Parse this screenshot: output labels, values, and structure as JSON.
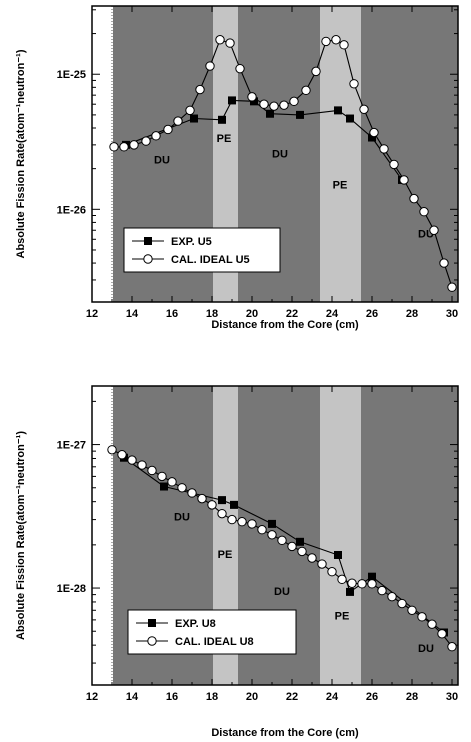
{
  "chart_data": [
    {
      "type": "line",
      "xlabel": "Distance from the Core (cm)",
      "ylabel": "Absolute Fission Rate(atom⁻¹neutron⁻¹)",
      "xlim": [
        12,
        30.3
      ],
      "xticks": [
        12,
        14,
        16,
        18,
        20,
        22,
        24,
        26,
        28,
        30
      ],
      "ylim": [
        2.06e-27,
        3.2e-25
      ],
      "log_y": true,
      "yticks": [
        {
          "value": 1e-26,
          "label": "1E-26"
        },
        {
          "value": 1e-25,
          "label": "1E-25"
        }
      ],
      "regions": [
        {
          "label": "DU",
          "x0": 13.05,
          "x1": 18.05,
          "fill": "#777777",
          "label_x": 15.5,
          "label_y": 2.3e-26
        },
        {
          "label": "PE",
          "x0": 18.05,
          "x1": 19.3,
          "fill": "#c4c4c4",
          "label_x": 18.6,
          "label_y": 3.3e-26
        },
        {
          "label": "DU",
          "x0": 19.3,
          "x1": 23.4,
          "fill": "#777777",
          "label_x": 21.4,
          "label_y": 2.55e-26
        },
        {
          "label": "PE",
          "x0": 23.4,
          "x1": 25.45,
          "fill": "#c4c4c4",
          "label_x": 24.4,
          "label_y": 1.5e-26
        },
        {
          "label": "DU",
          "x0": 25.45,
          "x1": 30.3,
          "fill": "#777777",
          "label_x": 28.7,
          "label_y": 6.5e-27
        }
      ],
      "legend_position": "bottom-left",
      "series": [
        {
          "name": "EXP. U5",
          "marker": "square-filled",
          "color": "#000000",
          "x": [
            13.7,
            17.1,
            18.5,
            19.0,
            20.1,
            20.9,
            22.4,
            24.3,
            24.9,
            26.0,
            27.5
          ],
          "y": [
            3e-26,
            4.7e-26,
            4.6e-26,
            6.4e-26,
            6.3e-26,
            5.1e-26,
            5e-26,
            5.4e-26,
            4.7e-26,
            3.4e-26,
            1.65e-26
          ]
        },
        {
          "name": "CAL. IDEAL U5",
          "marker": "circle-open",
          "color": "#000000",
          "x": [
            13.1,
            13.6,
            14.1,
            14.7,
            15.2,
            15.8,
            16.3,
            16.9,
            17.4,
            17.9,
            18.4,
            18.9,
            19.4,
            20.0,
            20.6,
            21.1,
            21.6,
            22.1,
            22.7,
            23.2,
            23.7,
            24.2,
            24.6,
            25.1,
            25.6,
            26.1,
            26.6,
            27.1,
            27.6,
            28.1,
            28.6,
            29.1,
            29.6,
            30.0
          ],
          "y": [
            2.9e-26,
            2.9e-26,
            3e-26,
            3.2e-26,
            3.5e-26,
            3.9e-26,
            4.5e-26,
            5.4e-26,
            7.7e-26,
            1.15e-25,
            1.8e-25,
            1.7e-25,
            1.1e-25,
            6.8e-26,
            6e-26,
            5.8e-26,
            5.9e-26,
            6.3e-26,
            7.6e-26,
            1.05e-25,
            1.75e-25,
            1.8e-25,
            1.65e-25,
            8.5e-26,
            5.5e-26,
            3.7e-26,
            2.8e-26,
            2.15e-26,
            1.65e-26,
            1.2e-26,
            9.6e-27,
            7e-27,
            4e-27,
            2.65e-27
          ]
        }
      ]
    },
    {
      "type": "line",
      "xlabel": "Distance from the Core (cm)",
      "ylabel": "Absolute Fission Rate(atom⁻¹neutron⁻¹)",
      "xlim": [
        12,
        30.3
      ],
      "xticks": [
        12,
        14,
        16,
        18,
        20,
        22,
        24,
        26,
        28,
        30
      ],
      "ylim": [
        2.11e-29,
        2.56e-27
      ],
      "log_y": true,
      "yticks": [
        {
          "value": 1e-28,
          "label": "1E-28"
        },
        {
          "value": 1e-27,
          "label": "1E-27"
        }
      ],
      "regions": [
        {
          "label": "DU",
          "x0": 13.05,
          "x1": 18.05,
          "fill": "#777777",
          "label_x": 16.5,
          "label_y": 3.1e-28
        },
        {
          "label": "PE",
          "x0": 18.05,
          "x1": 19.3,
          "fill": "#c4c4c4",
          "label_x": 18.65,
          "label_y": 1.7e-28
        },
        {
          "label": "DU",
          "x0": 19.3,
          "x1": 23.4,
          "fill": "#777777",
          "label_x": 21.5,
          "label_y": 9.4e-29
        },
        {
          "label": "PE",
          "x0": 23.4,
          "x1": 25.45,
          "fill": "#c4c4c4",
          "label_x": 24.5,
          "label_y": 6.3e-29
        },
        {
          "label": "DU",
          "x0": 25.45,
          "x1": 30.3,
          "fill": "#777777",
          "label_x": 28.7,
          "label_y": 3.75e-29
        }
      ],
      "legend_position": "bottom-left",
      "series": [
        {
          "name": "EXP. U8",
          "marker": "square-filled",
          "color": "#000000",
          "x": [
            13.6,
            15.6,
            18.5,
            19.1,
            21.0,
            22.4,
            24.3,
            24.9,
            26.0,
            29.6
          ],
          "y": [
            8.1e-28,
            5.1e-28,
            4.1e-28,
            3.8e-28,
            2.8e-28,
            2.1e-28,
            1.7e-28,
            9.4e-29,
            1.2e-28,
            4.9e-29
          ]
        },
        {
          "name": "CAL. IDEAL U8",
          "marker": "circle-open",
          "color": "#000000",
          "x": [
            13.0,
            13.5,
            14.0,
            14.5,
            15.0,
            15.5,
            16.0,
            16.5,
            17.0,
            17.5,
            18.0,
            18.5,
            19.0,
            19.5,
            20.0,
            20.5,
            21.0,
            21.5,
            22.0,
            22.5,
            23.0,
            23.5,
            24.0,
            24.5,
            25.0,
            25.5,
            26.0,
            26.5,
            27.0,
            27.5,
            28.0,
            28.5,
            29.0,
            29.5,
            30.0
          ],
          "y": [
            9.2e-28,
            8.5e-28,
            7.8e-28,
            7.2e-28,
            6.6e-28,
            6e-28,
            5.5e-28,
            5e-28,
            4.6e-28,
            4.2e-28,
            3.8e-28,
            3.3e-28,
            3e-28,
            2.9e-28,
            2.8e-28,
            2.55e-28,
            2.35e-28,
            2.15e-28,
            1.95e-28,
            1.8e-28,
            1.62e-28,
            1.47e-28,
            1.3e-28,
            1.15e-28,
            1.08e-28,
            1.07e-28,
            1.07e-28,
            9.6e-29,
            8.7e-29,
            7.8e-29,
            7e-29,
            6.3e-29,
            5.6e-29,
            4.8e-29,
            3.9e-29
          ]
        }
      ]
    }
  ]
}
